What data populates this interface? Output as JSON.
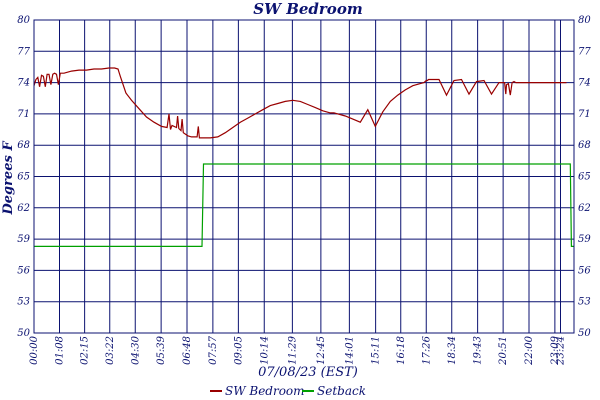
{
  "chart_data": {
    "type": "line",
    "title": "SW Bedroom",
    "xlabel": "07/08/23 (EST)",
    "ylabel": "Degrees F",
    "ylim": [
      50,
      80
    ],
    "yticks": [
      50,
      53,
      56,
      59,
      62,
      65,
      68,
      71,
      74,
      77,
      80
    ],
    "ytick_labels": [
      "50",
      "53",
      "56",
      "59",
      "62",
      "65",
      "68",
      "71",
      "74",
      "77",
      "80"
    ],
    "xlim": [
      0,
      1440
    ],
    "x_ticks": [
      {
        "label": "00:00",
        "min": 0
      },
      {
        "label": "01:08",
        "min": 68
      },
      {
        "label": "02:15",
        "min": 135
      },
      {
        "label": "03:22",
        "min": 202
      },
      {
        "label": "04:30",
        "min": 270
      },
      {
        "label": "05:39",
        "min": 339
      },
      {
        "label": "06:48",
        "min": 408
      },
      {
        "label": "07:57",
        "min": 477
      },
      {
        "label": "09:05",
        "min": 545
      },
      {
        "label": "10:14",
        "min": 614
      },
      {
        "label": "11:29",
        "min": 689
      },
      {
        "label": "12:45",
        "min": 765
      },
      {
        "label": "14:01",
        "min": 841
      },
      {
        "label": "15:11",
        "min": 911
      },
      {
        "label": "16:18",
        "min": 978
      },
      {
        "label": "17:26",
        "min": 1046
      },
      {
        "label": "18:34",
        "min": 1114
      },
      {
        "label": "19:43",
        "min": 1183
      },
      {
        "label": "20:51",
        "min": 1251
      },
      {
        "label": "22:00",
        "min": 1320
      },
      {
        "label": "23:09",
        "min": 1389
      },
      {
        "label": "23:24",
        "min": 1404
      }
    ],
    "grid": true,
    "legend": "bottom-center",
    "series": [
      {
        "name": "SW Bedroom",
        "color": "#990000",
        "x": [
          0,
          5,
          10,
          15,
          20,
          25,
          30,
          35,
          40,
          45,
          50,
          55,
          60,
          65,
          70,
          80,
          100,
          120,
          140,
          160,
          180,
          200,
          215,
          224,
          230,
          245,
          260,
          280,
          300,
          320,
          340,
          355,
          360,
          364,
          368,
          380,
          383,
          386,
          392,
          395,
          398,
          410,
          420,
          435,
          438,
          441,
          450,
          470,
          490,
          510,
          530,
          550,
          570,
          590,
          610,
          630,
          650,
          670,
          690,
          710,
          730,
          750,
          770,
          790,
          800,
          810,
          830,
          850,
          870,
          890,
          910,
          930,
          950,
          970,
          990,
          1010,
          1030,
          1040,
          1043,
          1046,
          1049,
          1052,
          1060,
          1070,
          1080,
          1100,
          1120,
          1140,
          1160,
          1180,
          1200,
          1220,
          1240,
          1255,
          1258,
          1260,
          1265,
          1270,
          1275,
          1280,
          1285,
          1290,
          1295,
          1300,
          1305,
          1310,
          1315,
          1320,
          1330,
          1340,
          1360,
          1380,
          1400,
          1420
        ],
        "values": [
          73.7,
          74.3,
          74.5,
          73.6,
          74.7,
          74.6,
          73.6,
          74.8,
          74.8,
          73.8,
          74.8,
          74.9,
          74.8,
          73.8,
          74.9,
          74.9,
          75.1,
          75.2,
          75.2,
          75.3,
          75.3,
          75.4,
          75.4,
          75.3,
          74.6,
          73.0,
          72.3,
          71.5,
          70.7,
          70.2,
          69.8,
          69.7,
          71.0,
          69.5,
          69.9,
          69.7,
          70.8,
          69.6,
          69.4,
          70.5,
          69.2,
          68.9,
          68.8,
          68.8,
          69.8,
          68.7,
          68.7,
          68.7,
          68.8,
          69.2,
          69.7,
          70.2,
          70.6,
          71.0,
          71.4,
          71.8,
          72.0,
          72.2,
          72.3,
          72.2,
          71.9,
          71.6,
          71.3,
          71.1,
          71.1,
          71.0,
          70.8,
          70.5,
          70.2,
          71.4,
          69.8,
          71.2,
          72.2,
          72.8,
          73.3,
          73.7,
          73.9,
          74.0,
          74.1,
          74.2,
          74.2,
          74.3,
          74.3,
          74.3,
          74.3,
          72.8,
          74.2,
          74.3,
          72.9,
          74.1,
          74.2,
          72.9,
          74.0,
          74.0,
          72.9,
          73.8,
          73.9,
          72.8,
          74.0,
          74.1,
          74.0,
          74.0,
          74.0,
          74.0,
          74.0,
          74.0,
          74.0,
          74.0,
          74.0,
          74.0,
          74.0,
          74.0,
          74.0,
          74.0
        ]
      },
      {
        "name": "Setback",
        "color": "#00a000",
        "x": [
          0,
          448,
          452,
          1430,
          1433,
          1440
        ],
        "values": [
          58.3,
          58.3,
          66.2,
          66.2,
          58.3,
          58.3
        ]
      }
    ]
  }
}
